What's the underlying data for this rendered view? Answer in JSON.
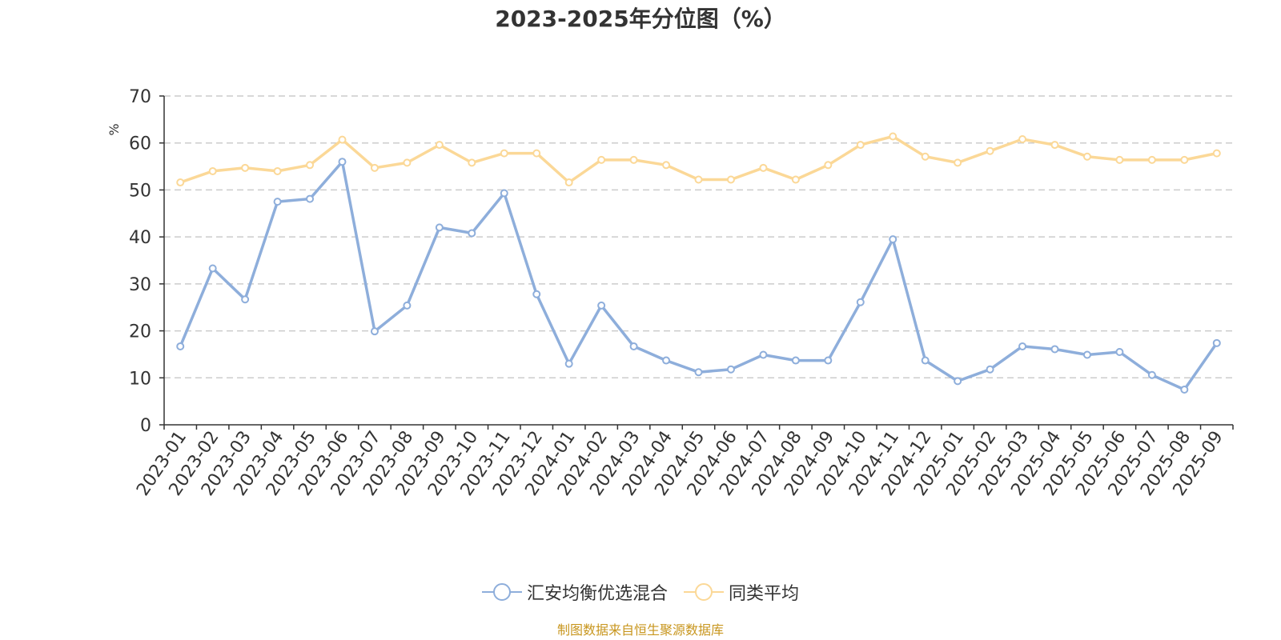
{
  "colors": {
    "series": [
      "#8eaedb",
      "#fbd897"
    ],
    "axis": "#333333",
    "grid": "#cccccc",
    "unit": "#ff0000",
    "source": "#c8961e"
  },
  "source_text": "制图数据来自恒生聚源数据库",
  "chart_data": {
    "type": "line",
    "title": "2023-2025年分位图（%）",
    "ylabel": "%",
    "xlabel": "",
    "ylim": [
      0,
      70
    ],
    "yticks": [
      0,
      10,
      20,
      30,
      40,
      50,
      60,
      70
    ],
    "grid": true,
    "legend_position": "bottom",
    "categories": [
      "2023-01",
      "2023-02",
      "2023-03",
      "2023-04",
      "2023-05",
      "2023-06",
      "2023-07",
      "2023-08",
      "2023-09",
      "2023-10",
      "2023-11",
      "2023-12",
      "2024-01",
      "2024-02",
      "2024-03",
      "2024-04",
      "2024-05",
      "2024-06",
      "2024-07",
      "2024-08",
      "2024-09",
      "2024-10",
      "2024-11",
      "2024-12",
      "2025-01",
      "2025-02",
      "2025-03",
      "2025-04",
      "2025-05",
      "2025-06",
      "2025-07",
      "2025-08",
      "2025-09"
    ],
    "series": [
      {
        "name": "汇安均衡优选混合",
        "values": [
          16.7,
          33.3,
          26.7,
          47.5,
          48.1,
          56.0,
          19.9,
          25.4,
          42.0,
          40.8,
          49.3,
          27.8,
          13.0,
          25.4,
          16.7,
          13.7,
          11.2,
          11.8,
          14.9,
          13.7,
          13.7,
          26.1,
          39.5,
          13.7,
          9.3,
          11.8,
          16.7,
          16.1,
          14.9,
          15.5,
          10.6,
          7.5,
          17.4
        ]
      },
      {
        "name": "同类平均",
        "values": [
          51.6,
          54.0,
          54.7,
          54.0,
          55.3,
          60.7,
          54.7,
          55.8,
          59.6,
          55.8,
          57.8,
          57.8,
          51.6,
          56.4,
          56.4,
          55.3,
          52.2,
          52.2,
          54.7,
          52.2,
          55.3,
          59.6,
          61.4,
          57.1,
          55.8,
          58.3,
          60.8,
          59.6,
          57.1,
          56.4,
          56.4,
          56.4,
          57.8
        ]
      }
    ]
  }
}
